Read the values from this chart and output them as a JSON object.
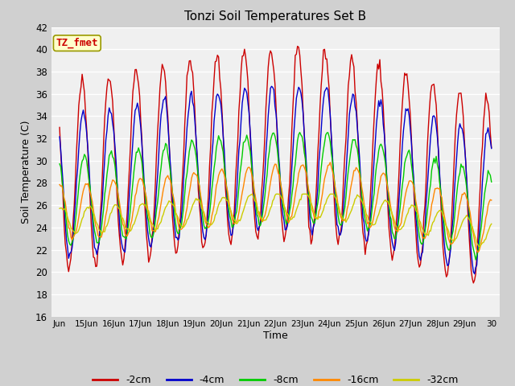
{
  "title": "Tonzi Soil Temperatures Set B",
  "xlabel": "Time",
  "ylabel": "Soil Temperature (C)",
  "ylim": [
    16,
    42
  ],
  "yticks": [
    16,
    18,
    20,
    22,
    24,
    26,
    28,
    30,
    32,
    34,
    36,
    38,
    40,
    42
  ],
  "fig_bg_color": "#d0d0d0",
  "plot_bg_color": "#f0f0f0",
  "series_colors": [
    "#cc0000",
    "#0000cc",
    "#00cc00",
    "#ff8800",
    "#cccc00"
  ],
  "series_labels": [
    "-2cm",
    "-4cm",
    "-8cm",
    "-16cm",
    "-32cm"
  ],
  "annotation_text": "TZ_fmet",
  "annotation_bg": "#ffffcc",
  "annotation_border": "#999900",
  "annotation_color": "#cc0000",
  "x_tick_labels": [
    "Jun",
    "15Jun",
    "16Jun",
    "17Jun",
    "18Jun",
    "19Jun",
    "20Jun",
    "21Jun",
    "22Jun",
    "23Jun",
    "24Jun",
    "25Jun",
    "26Jun",
    "27Jun",
    "28Jun",
    "29Jun",
    "30"
  ]
}
